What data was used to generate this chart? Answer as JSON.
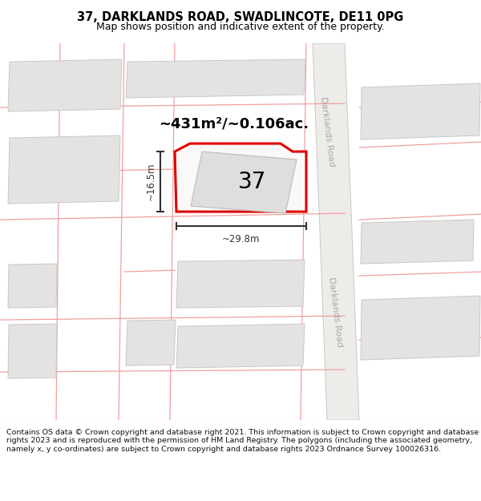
{
  "title": "37, DARKLANDS ROAD, SWADLINCOTE, DE11 0PG",
  "subtitle": "Map shows position and indicative extent of the property.",
  "footer": "Contains OS data © Crown copyright and database right 2021. This information is subject to Crown copyright and database rights 2023 and is reproduced with the permission of HM Land Registry. The polygons (including the associated geometry, namely x, y co-ordinates) are subject to Crown copyright and database rights 2023 Ordnance Survey 100026316.",
  "area_text": "~431m²/~0.106ac.",
  "label_37": "37",
  "dim_width": "~29.8m",
  "dim_height": "~16.5m",
  "road_label": "Darklands Road",
  "map_bg": "#f7f6f4",
  "plot_fill": "#faf9f8",
  "plot_stroke": "#dd0000",
  "building_fill": "#e0dedd",
  "building_stroke": "#bbbbbb",
  "road_line_color": "#f0a0a0",
  "road_fill": "#f2f0ee",
  "parcel_stroke": "#f0a0a0",
  "grey_block_fill": "#e5e3e1",
  "grey_block_stroke": "#c8c8c8",
  "dim_color": "#333333",
  "road_band_fill": "#eeece9",
  "road_text_color": "#aaaaaa",
  "title_fontsize": 10.5,
  "subtitle_fontsize": 9,
  "footer_fontsize": 6.8
}
